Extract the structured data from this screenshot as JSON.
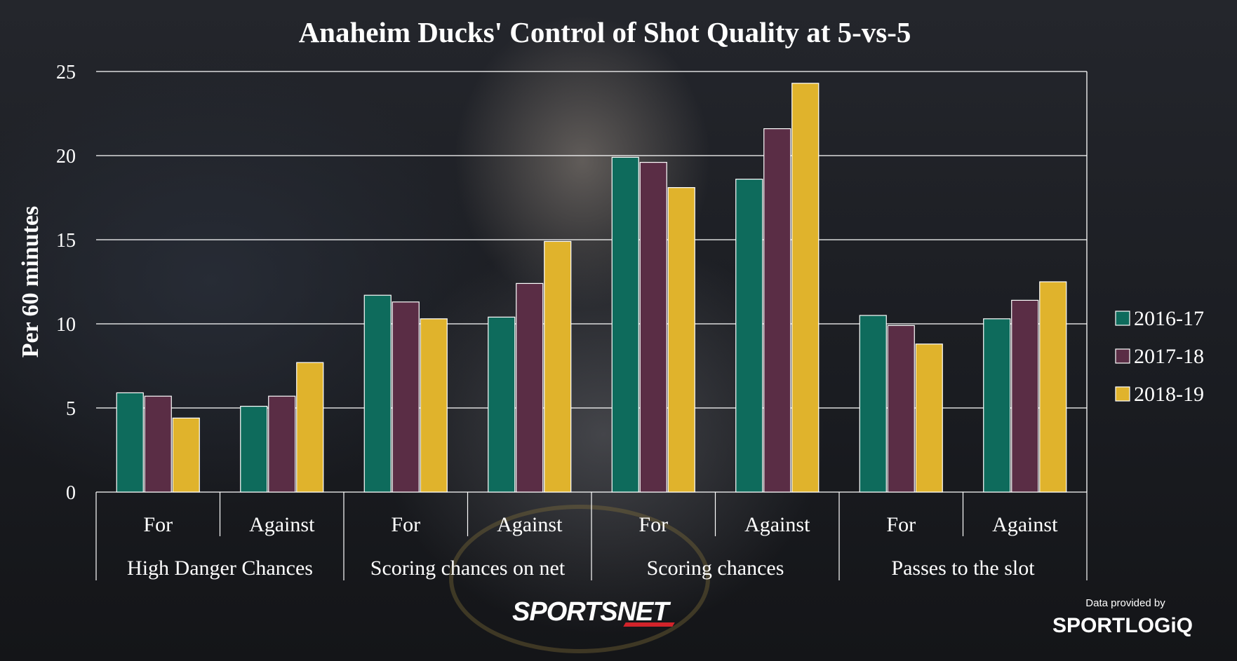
{
  "chart_data": {
    "type": "bar",
    "title": "Anaheim Ducks' Control of Shot Quality at 5-vs-5",
    "ylabel": "Per 60 minutes",
    "xlabel": "",
    "ylim": [
      0,
      25
    ],
    "yticks": [
      "0",
      "5",
      "10",
      "15",
      "20",
      "25"
    ],
    "grid": true,
    "legend_position": "right",
    "groups": [
      {
        "name": "High Danger Chances",
        "categories": [
          "For",
          "Against"
        ]
      },
      {
        "name": "Scoring chances on net",
        "categories": [
          "For",
          "Against"
        ]
      },
      {
        "name": "Scoring chances",
        "categories": [
          "For",
          "Against"
        ]
      },
      {
        "name": "Passes to the slot",
        "categories": [
          "For",
          "Against"
        ]
      }
    ],
    "categories": [
      "For",
      "Against",
      "For",
      "Against",
      "For",
      "Against",
      "For",
      "Against"
    ],
    "series": [
      {
        "name": "2016-17",
        "color": "#0e6b5c",
        "values": [
          5.9,
          5.1,
          11.7,
          10.4,
          19.9,
          18.6,
          10.5,
          10.3
        ]
      },
      {
        "name": "2017-18",
        "color": "#5a2d45",
        "values": [
          5.7,
          5.7,
          11.3,
          12.4,
          19.6,
          21.6,
          9.9,
          11.4
        ]
      },
      {
        "name": "2018-19",
        "color": "#e0b32c",
        "values": [
          4.4,
          7.7,
          10.3,
          14.9,
          18.1,
          24.3,
          8.8,
          12.5
        ]
      }
    ]
  },
  "branding": {
    "publisher": "SPORTSNET",
    "data_credit": "Data provided by",
    "data_provider": "SPORTLOGiQ"
  }
}
